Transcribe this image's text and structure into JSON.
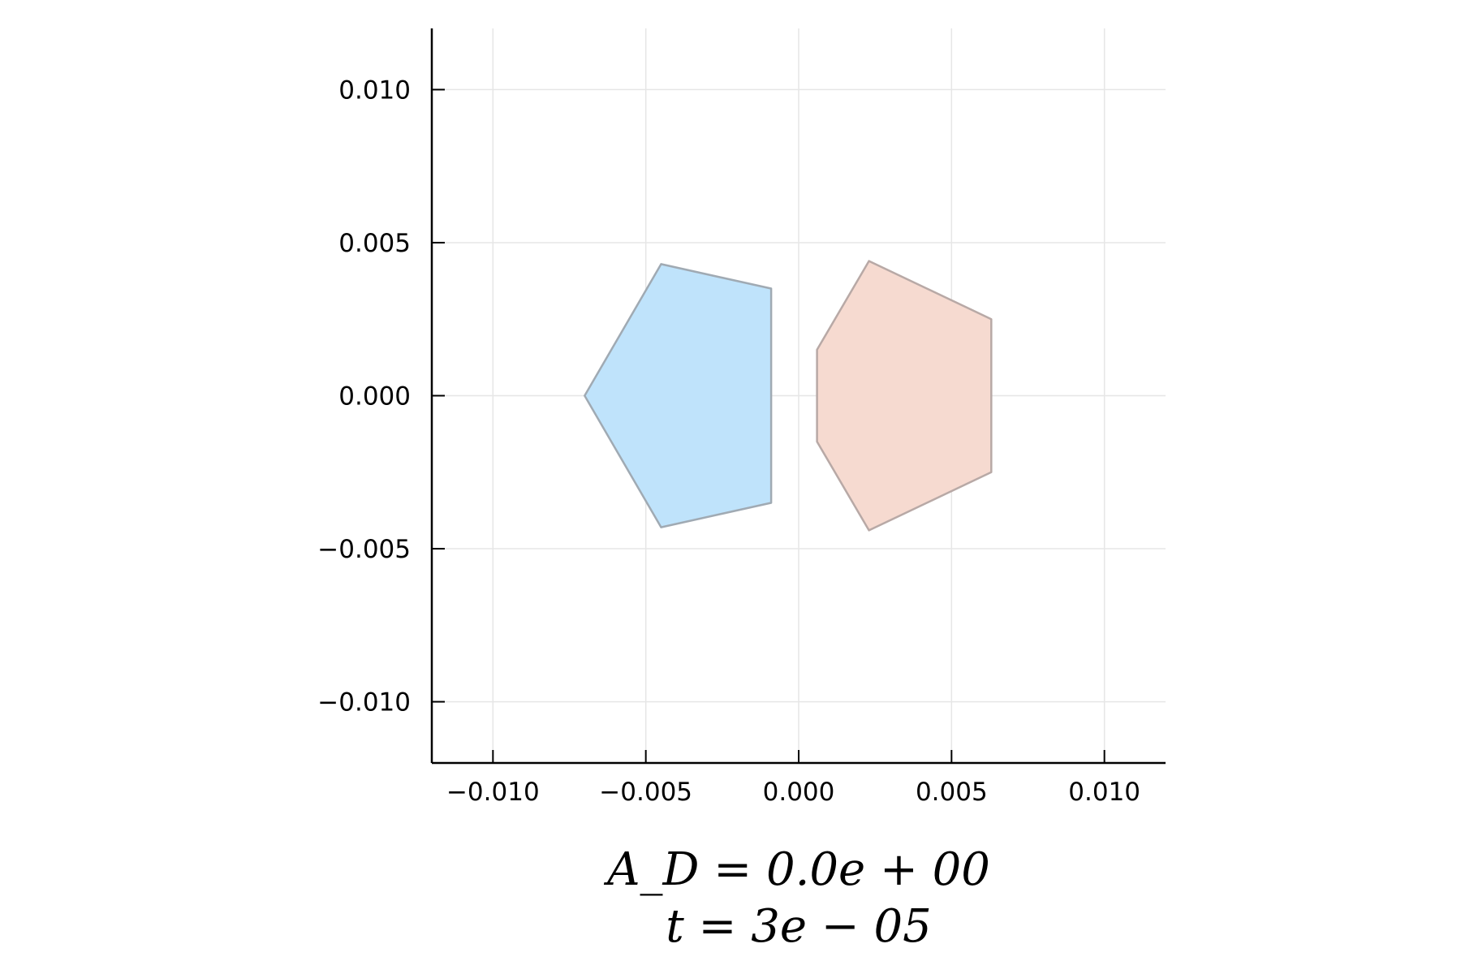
{
  "chart_data": {
    "type": "polygon",
    "title": "",
    "xlabel_lines": [
      "A_D = 0.0e + 00",
      "t = 3e − 05"
    ],
    "ylabel": "",
    "xlim": [
      -0.012,
      0.012
    ],
    "ylim": [
      -0.012,
      0.012
    ],
    "grid": true,
    "legend": "none",
    "aspect": "equal",
    "xticks": [
      -0.01,
      -0.005,
      0.0,
      0.005,
      0.01
    ],
    "yticks": [
      -0.01,
      -0.005,
      0.0,
      0.005,
      0.01
    ],
    "xtick_labels": [
      "−0.010",
      "−0.005",
      "0.000",
      "0.005",
      "0.010"
    ],
    "ytick_labels": [
      "−0.010",
      "−0.005",
      "0.000",
      "0.005",
      "0.010"
    ],
    "series": [
      {
        "fill": "#bfe3fb",
        "edge": "#a0aab3",
        "points": [
          [
            -0.007,
            0.0
          ],
          [
            -0.0045,
            0.0043
          ],
          [
            -0.0009,
            0.0035
          ],
          [
            -0.0009,
            -0.0035
          ],
          [
            -0.0045,
            -0.0043
          ]
        ]
      },
      {
        "fill": "#f6dad0",
        "edge": "#b8a9a6",
        "points": [
          [
            0.0006,
            0.0015
          ],
          [
            0.0023,
            0.0044
          ],
          [
            0.0063,
            0.0025
          ],
          [
            0.0063,
            -0.0025
          ],
          [
            0.0023,
            -0.0044
          ],
          [
            0.0006,
            -0.0015
          ]
        ]
      }
    ]
  }
}
